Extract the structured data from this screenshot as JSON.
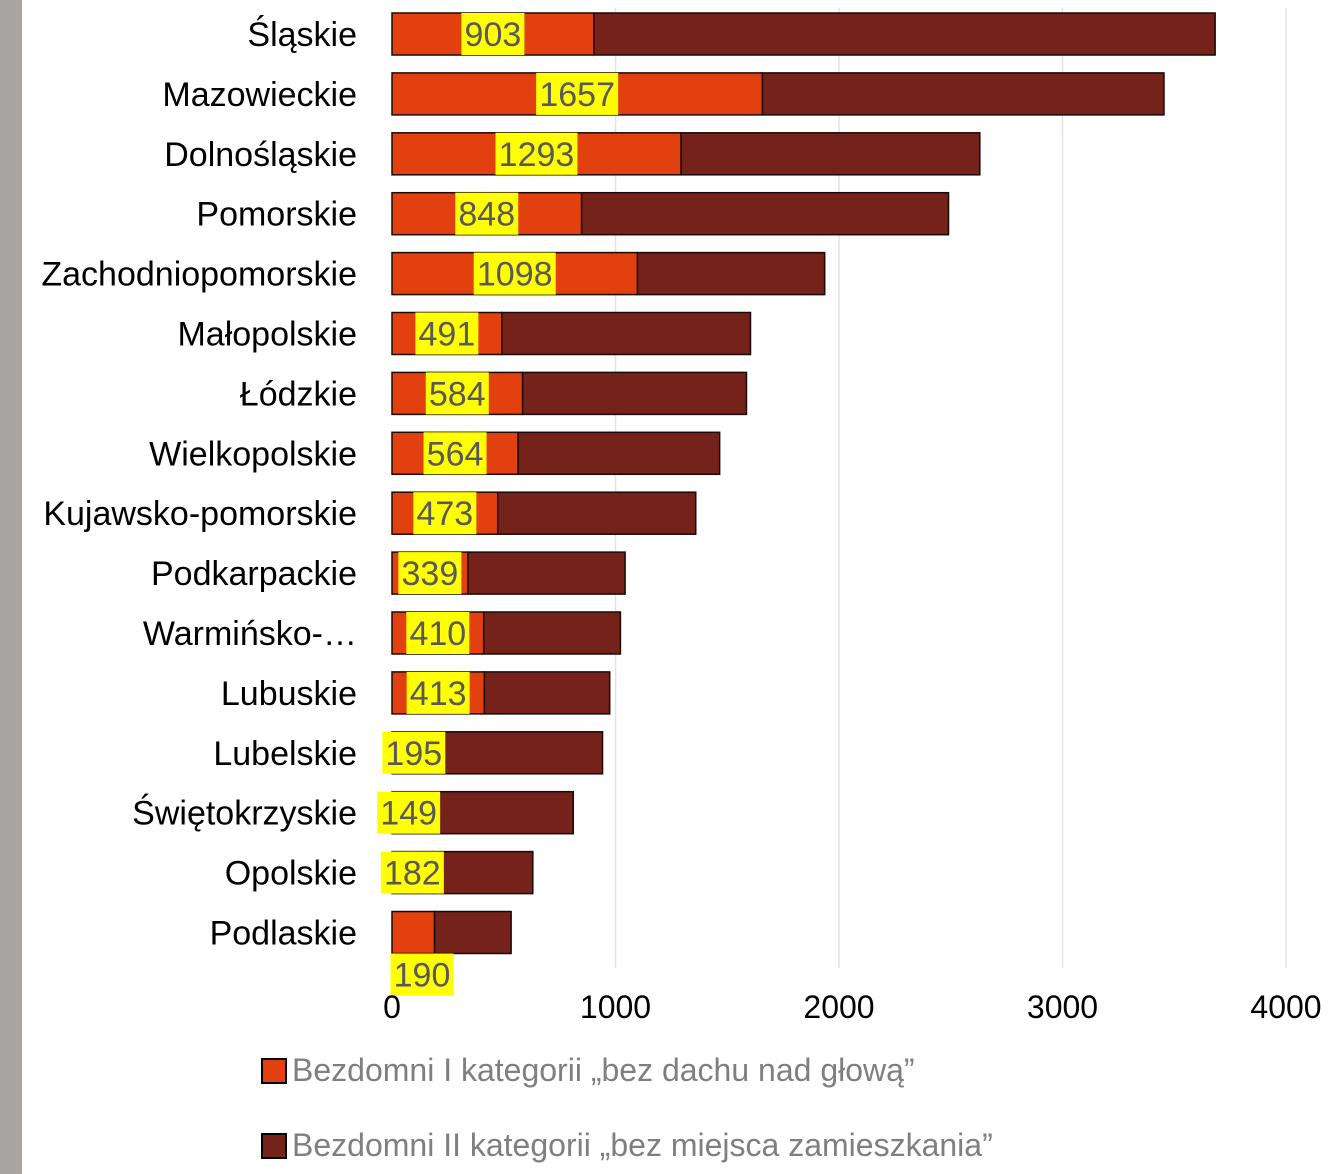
{
  "chart_data": {
    "type": "bar",
    "orientation": "horizontal",
    "stacked": true,
    "categories": [
      "Śląskie",
      "Mazowieckie",
      "Dolnośląskie",
      "Pomorskie",
      "Zachodniopomorskie",
      "Małopolskie",
      "Łódzkie",
      "Wielkopolskie",
      "Kujawsko-pomorskie",
      "Podkarpackie",
      "Warmińsko-…",
      "Lubuskie",
      "Lubelskie",
      "Świętokrzyskie",
      "Opolskie",
      "Podlaskie"
    ],
    "series": [
      {
        "name": "Bezdomni I kategorii „bez dachu nad głową”",
        "color": "#e2400e",
        "values": [
          903,
          1657,
          1293,
          848,
          1098,
          491,
          584,
          564,
          473,
          339,
          410,
          413,
          195,
          149,
          182,
          190
        ]
      },
      {
        "name": "Bezdomni II kategorii „bez miejsca zamieszkania”",
        "color": "#74221a",
        "values": [
          2780,
          1797,
          1337,
          1642,
          838,
          1113,
          1002,
          902,
          886,
          704,
          612,
          561,
          747,
          662,
          448,
          343
        ]
      }
    ],
    "data_labels": [
      "903",
      "1657",
      "1293",
      "848",
      "1098",
      "491",
      "584",
      "564",
      "473",
      "339",
      "410",
      "413",
      "195",
      "149",
      "182",
      "190"
    ],
    "x_ticks": [
      "0",
      "1000",
      "2000",
      "3000",
      "4000"
    ],
    "xlim": [
      0,
      4000
    ],
    "grid": true,
    "legend_position": "bottom",
    "label_highlight_color": "#ffff00"
  }
}
